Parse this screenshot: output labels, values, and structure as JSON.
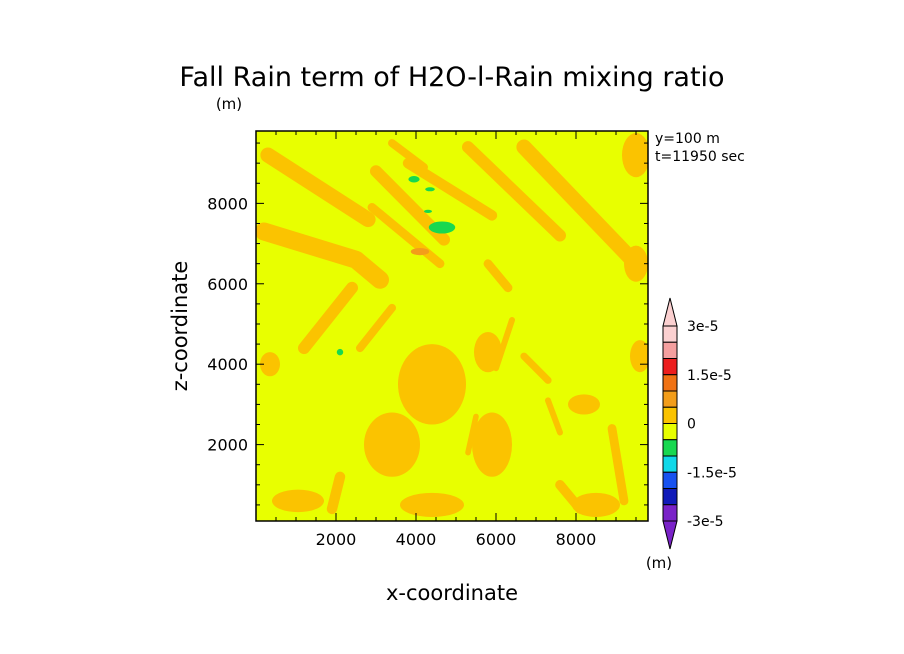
{
  "chart_data": {
    "type": "heatmap",
    "title": "Fall Rain term of H2O-l-Rain mixing ratio",
    "title_unit": "(m)",
    "info_lines": [
      "y=100 m",
      "t=11950 sec"
    ],
    "xlabel": "x-coordinate",
    "ylabel": "z-coordinate",
    "xlim": [
      0,
      9800
    ],
    "ylim": [
      100,
      9800
    ],
    "x_ticks": [
      2000,
      4000,
      6000,
      8000
    ],
    "y_ticks": [
      2000,
      4000,
      6000,
      8000
    ],
    "x_tick_labels": [
      "2000",
      "4000",
      "6000",
      "8000"
    ],
    "y_tick_labels": [
      "2000",
      "4000",
      "6000",
      "8000"
    ],
    "background_value": 0,
    "regions": [
      {
        "level": "pos_small",
        "type": "band",
        "points": [
          [
            300,
            9200
          ],
          [
            2800,
            7600
          ]
        ],
        "width": 380
      },
      {
        "level": "pos_small",
        "type": "band",
        "points": [
          [
            200,
            7300
          ],
          [
            2500,
            6600
          ],
          [
            3100,
            6100
          ]
        ],
        "width": 450
      },
      {
        "level": "pos_small",
        "type": "band",
        "points": [
          [
            3000,
            8800
          ],
          [
            4700,
            7100
          ]
        ],
        "width": 300
      },
      {
        "level": "pos_small",
        "type": "band",
        "points": [
          [
            3800,
            9000
          ],
          [
            5900,
            7700
          ]
        ],
        "width": 260
      },
      {
        "level": "pos_small",
        "type": "band",
        "points": [
          [
            5300,
            9400
          ],
          [
            7600,
            7200
          ]
        ],
        "width": 300
      },
      {
        "level": "pos_small",
        "type": "band",
        "points": [
          [
            6700,
            9400
          ],
          [
            9400,
            6600
          ]
        ],
        "width": 380
      },
      {
        "level": "pos_small",
        "type": "band",
        "points": [
          [
            2900,
            7900
          ],
          [
            4600,
            6500
          ]
        ],
        "width": 220
      },
      {
        "level": "pos_small",
        "type": "band",
        "points": [
          [
            3400,
            9500
          ],
          [
            4200,
            8900
          ]
        ],
        "width": 200
      },
      {
        "level": "pos_small",
        "type": "band",
        "points": [
          [
            5800,
            6500
          ],
          [
            6300,
            5900
          ]
        ],
        "width": 220
      },
      {
        "level": "pos_small",
        "type": "band",
        "points": [
          [
            1200,
            4400
          ],
          [
            2400,
            5900
          ]
        ],
        "width": 300
      },
      {
        "level": "pos_small",
        "type": "band",
        "points": [
          [
            2600,
            4400
          ],
          [
            3400,
            5400
          ]
        ],
        "width": 200
      },
      {
        "level": "pos_small",
        "type": "band",
        "points": [
          [
            6400,
            5100
          ],
          [
            6000,
            3900
          ]
        ],
        "width": 150
      },
      {
        "level": "pos_small",
        "type": "band",
        "points": [
          [
            6700,
            4200
          ],
          [
            7300,
            3600
          ]
        ],
        "width": 180
      },
      {
        "level": "pos_small",
        "type": "band",
        "points": [
          [
            8900,
            2400
          ],
          [
            9200,
            600
          ]
        ],
        "width": 220
      },
      {
        "level": "pos_small",
        "type": "band",
        "points": [
          [
            2100,
            1200
          ],
          [
            1900,
            400
          ]
        ],
        "width": 260
      },
      {
        "level": "pos_small",
        "type": "band",
        "points": [
          [
            7600,
            1000
          ],
          [
            8100,
            400
          ]
        ],
        "width": 240
      },
      {
        "level": "pos_small",
        "type": "band",
        "points": [
          [
            7300,
            3100
          ],
          [
            7600,
            2300
          ]
        ],
        "width": 150
      },
      {
        "level": "pos_small",
        "type": "band",
        "points": [
          [
            5500,
            2700
          ],
          [
            5300,
            1800
          ]
        ],
        "width": 140
      },
      {
        "level": "pos_small",
        "type": "blob",
        "cx": 1050,
        "cy": 600,
        "rx": 650,
        "ry": 280
      },
      {
        "level": "pos_small",
        "type": "blob",
        "cx": 3400,
        "cy": 2000,
        "rx": 700,
        "ry": 800
      },
      {
        "level": "pos_small",
        "type": "blob",
        "cx": 4400,
        "cy": 3500,
        "rx": 850,
        "ry": 1000
      },
      {
        "level": "pos_small",
        "type": "blob",
        "cx": 5900,
        "cy": 2000,
        "rx": 500,
        "ry": 800
      },
      {
        "level": "pos_small",
        "type": "blob",
        "cx": 5800,
        "cy": 4300,
        "rx": 350,
        "ry": 500
      },
      {
        "level": "pos_small",
        "type": "blob",
        "cx": 8500,
        "cy": 500,
        "rx": 600,
        "ry": 300
      },
      {
        "level": "pos_small",
        "type": "blob",
        "cx": 4400,
        "cy": 500,
        "rx": 800,
        "ry": 300
      },
      {
        "level": "pos_small",
        "type": "blob",
        "cx": 9600,
        "cy": 4200,
        "rx": 250,
        "ry": 400
      },
      {
        "level": "pos_small",
        "type": "blob",
        "cx": 350,
        "cy": 4000,
        "rx": 250,
        "ry": 300
      },
      {
        "level": "pos_small",
        "type": "blob",
        "cx": 9500,
        "cy": 9200,
        "rx": 350,
        "ry": 550
      },
      {
        "level": "pos_small",
        "type": "blob",
        "cx": 8200,
        "cy": 3000,
        "rx": 400,
        "ry": 250
      },
      {
        "level": "pos_small",
        "type": "blob",
        "cx": 9500,
        "cy": 6500,
        "rx": 300,
        "ry": 450
      },
      {
        "level": "pos_mid",
        "type": "blob",
        "cx": 4100,
        "cy": 6800,
        "rx": 230,
        "ry": 90
      },
      {
        "level": "neg_small",
        "type": "blob",
        "cx": 4650,
        "cy": 7400,
        "rx": 330,
        "ry": 150
      },
      {
        "level": "neg_small",
        "type": "blob",
        "cx": 3950,
        "cy": 8600,
        "rx": 140,
        "ry": 80
      },
      {
        "level": "neg_small",
        "type": "blob",
        "cx": 4350,
        "cy": 8350,
        "rx": 120,
        "ry": 50
      },
      {
        "level": "neg_small",
        "type": "blob",
        "cx": 4300,
        "cy": 7800,
        "rx": 100,
        "ry": 40
      },
      {
        "level": "neg_small",
        "type": "blob",
        "cx": 2100,
        "cy": 4300,
        "rx": 80,
        "ry": 80
      }
    ],
    "colorbar": {
      "unit": "(m)",
      "tick_labels": [
        "3e-5",
        "1.5e-5",
        "0",
        "-1.5e-5",
        "-3e-5"
      ],
      "colors_top_to_bottom": [
        "#fbd0d0",
        "#f49f9f",
        "#ec1e1e",
        "#f07214",
        "#f39d1a",
        "#fbc300",
        "#e8ff00",
        "#18d850",
        "#10d8e8",
        "#1852f0",
        "#101ab8",
        "#7a22c8"
      ]
    },
    "colors": {
      "background_field": "#e8ff00",
      "pos_small": "#fbc300",
      "pos_mid": "#f39d1a",
      "neg_small": "#18d850"
    }
  }
}
